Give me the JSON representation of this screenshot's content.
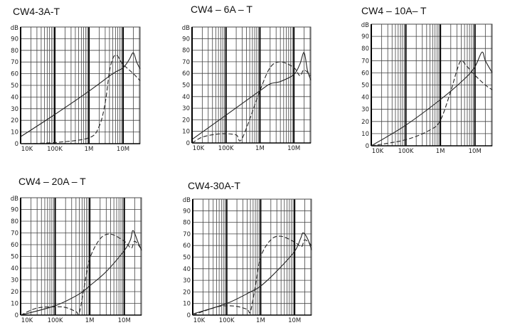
{
  "chart_data": [
    {
      "type": "line",
      "title": "CW4-3A-T",
      "ylabel": "dB",
      "xscale": "log",
      "xlim": [
        10000,
        31600000
      ],
      "ylim": [
        0,
        100
      ],
      "yticks": [
        "0",
        "10",
        "20",
        "30",
        "40",
        "50",
        "60",
        "70",
        "80",
        "90"
      ],
      "xticks": [
        {
          "value": 10000,
          "label": "10K"
        },
        {
          "value": 100000,
          "label": "100K"
        },
        {
          "value": 1000000,
          "label": "1M"
        },
        {
          "value": 10000000,
          "label": "10M"
        }
      ],
      "grid": true,
      "series": [
        {
          "name": "solid",
          "style": "solid",
          "x": [
            10000,
            100000,
            1000000,
            5000000,
            10000000,
            15000000,
            20000000,
            25000000,
            31600000
          ],
          "y": [
            6,
            25,
            45,
            60,
            65,
            72,
            78,
            70,
            64
          ]
        },
        {
          "name": "dashed",
          "style": "dashed",
          "x": [
            10000,
            100000,
            1000000,
            2000000,
            3000000,
            4000000,
            5000000,
            6000000,
            7000000,
            8000000,
            10000000,
            20000000,
            31600000
          ],
          "y": [
            0,
            1,
            5,
            15,
            35,
            62,
            73,
            76,
            75,
            72,
            68,
            60,
            54
          ]
        }
      ]
    },
    {
      "type": "line",
      "title": "CW4 – 6A – T",
      "ylabel": "dB",
      "xscale": "log",
      "xlim": [
        10000,
        31600000
      ],
      "ylim": [
        0,
        100
      ],
      "yticks": [
        "0",
        "10",
        "20",
        "30",
        "40",
        "50",
        "60",
        "70",
        "80",
        "90"
      ],
      "xticks": [
        {
          "value": 10000,
          "label": "10K"
        },
        {
          "value": 100000,
          "label": "100K"
        },
        {
          "value": 1000000,
          "label": "1M"
        },
        {
          "value": 10000000,
          "label": "10M"
        }
      ],
      "grid": true,
      "series": [
        {
          "name": "solid",
          "style": "solid",
          "x": [
            10000,
            100000,
            1000000,
            2000000,
            4000000,
            10000000,
            15000000,
            20000000,
            25000000,
            31600000
          ],
          "y": [
            3,
            24,
            45,
            51,
            53,
            59,
            68,
            78,
            63,
            54
          ]
        },
        {
          "name": "dashed",
          "style": "dashed",
          "x": [
            10000,
            20000,
            50000,
            100000,
            200000,
            300000,
            1000000,
            2000000,
            4000000,
            10000000,
            15000000,
            20000000,
            31600000
          ],
          "y": [
            0,
            5,
            7.5,
            8,
            7,
            4,
            45,
            65,
            70,
            65,
            58,
            63,
            58
          ]
        }
      ]
    },
    {
      "type": "line",
      "title": "CW4 – 10A– T",
      "ylabel": "dB",
      "xscale": "log",
      "xlim": [
        10000,
        31600000
      ],
      "ylim": [
        0,
        100
      ],
      "yticks": [
        "0",
        "10",
        "20",
        "30",
        "40",
        "50",
        "60",
        "70",
        "80",
        "90"
      ],
      "xticks": [
        {
          "value": 10000,
          "label": "10K"
        },
        {
          "value": 100000,
          "label": "100K"
        },
        {
          "value": 1000000,
          "label": "1M"
        },
        {
          "value": 10000000,
          "label": "10M"
        }
      ],
      "grid": true,
      "series": [
        {
          "name": "solid",
          "style": "solid",
          "x": [
            10000,
            100000,
            1000000,
            5000000,
            10000000,
            16000000,
            20000000,
            31600000
          ],
          "y": [
            0,
            17,
            38,
            55,
            65,
            77,
            70,
            60
          ]
        },
        {
          "name": "dashed",
          "style": "dashed",
          "x": [
            10000,
            100000,
            500000,
            1000000,
            2000000,
            3000000,
            4000000,
            6000000,
            10000000,
            20000000,
            31600000
          ],
          "y": [
            0,
            5,
            13,
            21,
            45,
            62,
            70,
            65,
            58,
            50,
            46
          ]
        }
      ]
    },
    {
      "type": "line",
      "title": "CW4 – 20A – T",
      "ylabel": "dB",
      "xscale": "log",
      "xlim": [
        10000,
        31600000
      ],
      "ylim": [
        0,
        100
      ],
      "yticks": [
        "0",
        "10",
        "20",
        "30",
        "40",
        "50",
        "60",
        "70",
        "80",
        "90"
      ],
      "xticks": [
        {
          "value": 10000,
          "label": "10K"
        },
        {
          "value": 100000,
          "label": "100K"
        },
        {
          "value": 1000000,
          "label": "1M"
        },
        {
          "value": 10000000,
          "label": "10M"
        }
      ],
      "grid": true,
      "series": [
        {
          "name": "solid",
          "style": "solid",
          "x": [
            10000,
            100000,
            500000,
            1000000,
            3000000,
            10000000,
            15000000,
            18000000,
            25000000,
            31600000
          ],
          "y": [
            0,
            8,
            18,
            25,
            37,
            55,
            64,
            72,
            62,
            55
          ]
        },
        {
          "name": "dashed",
          "style": "dashed",
          "x": [
            10000,
            30000,
            100000,
            200000,
            400000,
            500000,
            700000,
            1000000,
            2000000,
            4000000,
            10000000,
            16000000,
            20000000,
            31600000
          ],
          "y": [
            0,
            6,
            7,
            6.5,
            3,
            2,
            25,
            48,
            65,
            69,
            63,
            57,
            63,
            56
          ]
        }
      ]
    },
    {
      "type": "line",
      "title": "CW4-30A-T",
      "ylabel": "dB",
      "xscale": "log",
      "xlim": [
        10000,
        31600000
      ],
      "ylim": [
        0,
        100
      ],
      "yticks": [
        "0",
        "10",
        "20",
        "30",
        "40",
        "50",
        "60",
        "70",
        "80",
        "90"
      ],
      "xticks": [
        {
          "value": 10000,
          "label": "10K"
        },
        {
          "value": 100000,
          "label": "100K"
        },
        {
          "value": 1000000,
          "label": "1M"
        },
        {
          "value": 10000000,
          "label": "10M"
        }
      ],
      "grid": true,
      "series": [
        {
          "name": "solid",
          "style": "solid",
          "x": [
            10000,
            100000,
            500000,
            1000000,
            3000000,
            10000000,
            15000000,
            18000000,
            25000000,
            31600000
          ],
          "y": [
            1,
            10,
            20,
            25,
            38,
            55,
            66,
            71,
            65,
            56
          ]
        },
        {
          "name": "dashed",
          "style": "dashed",
          "x": [
            10000,
            50000,
            100000,
            200000,
            400000,
            500000,
            700000,
            1000000,
            2000000,
            4000000,
            10000000,
            16000000,
            20000000,
            31600000
          ],
          "y": [
            0,
            7,
            8,
            7.5,
            5,
            3,
            25,
            50,
            65,
            68,
            63,
            59,
            65,
            60
          ]
        }
      ]
    }
  ]
}
